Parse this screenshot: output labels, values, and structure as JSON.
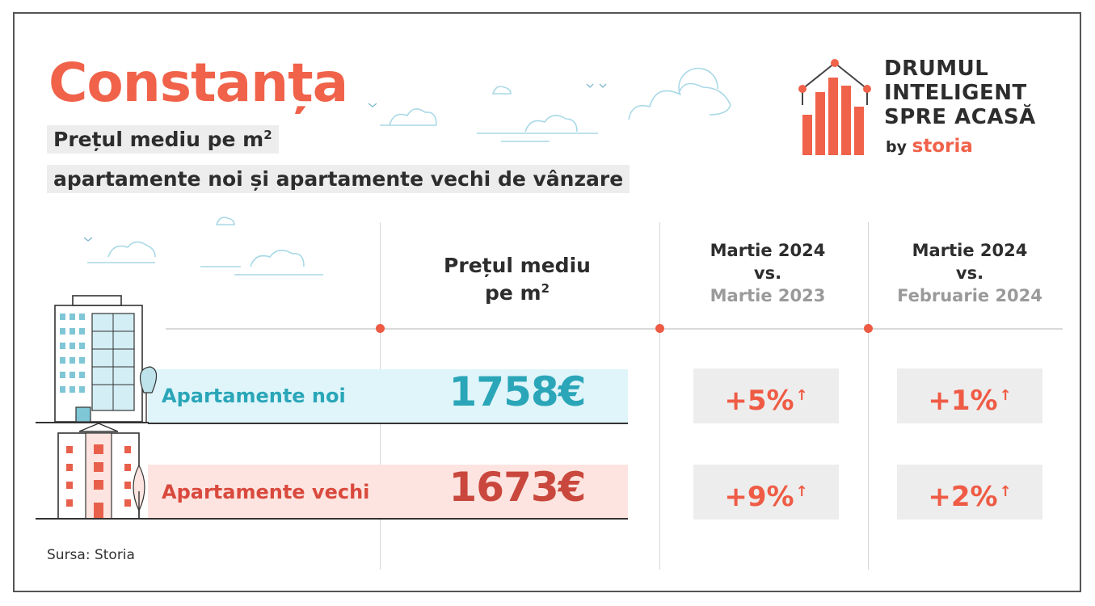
{
  "title": "Constanța",
  "subtitle_line1": "Prețul mediu pe m",
  "subtitle_line1_sup": "2",
  "subtitle_line2": "apartamente noi și apartamente vechi de vânzare",
  "logo": {
    "line1": "DRUMUL",
    "line2": "INTELIGENT",
    "line3": "SPRE ACASĂ",
    "by": "by",
    "brand": "storia",
    "accent_color": "#f0624a"
  },
  "columns": {
    "price_header_line1": "Prețul mediu",
    "price_header_line2": "pe m",
    "price_header_sup": "2",
    "yoy_line1": "Martie 2024",
    "yoy_line2": "vs.",
    "yoy_line3": "Martie 2023",
    "mom_line1": "Martie 2024",
    "mom_line2": "vs.",
    "mom_line3": "Februarie 2024"
  },
  "rows": [
    {
      "label": "Apartamente noi",
      "price": "1758€",
      "yoy": "+5%",
      "mom": "+1%",
      "color": "#2aa6b8"
    },
    {
      "label": "Apartamente vechi",
      "price": "1673€",
      "yoy": "+9%",
      "mom": "+2%",
      "color": "#c9473c"
    }
  ],
  "arrow_icon": "arrow-up-icon",
  "source": "Sursa: Storia"
}
